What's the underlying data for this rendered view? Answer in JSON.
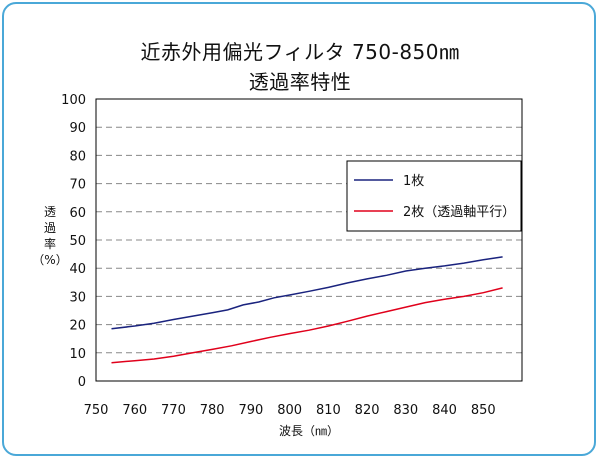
{
  "chart_data": {
    "type": "line",
    "title": "近赤外用偏光フィルタ 750-850㎚",
    "subtitle": "透過率特性",
    "xlabel": "波長（㎚）",
    "ylabel_lines": [
      "透",
      "過",
      "率",
      "（%）"
    ],
    "xlim": [
      750,
      860
    ],
    "ylim": [
      0,
      100
    ],
    "x_ticks": [
      750,
      760,
      770,
      780,
      790,
      800,
      810,
      820,
      830,
      840,
      850
    ],
    "y_ticks": [
      0,
      10,
      20,
      30,
      40,
      50,
      60,
      70,
      80,
      90,
      100
    ],
    "grid": "horizontal dashed",
    "legend_position": "right-center",
    "series": [
      {
        "name": "1枚",
        "color": "#1a237e",
        "x": [
          754,
          760,
          765,
          770,
          775,
          780,
          784,
          788,
          792,
          796,
          800,
          805,
          810,
          815,
          820,
          825,
          830,
          835,
          840,
          845,
          850,
          855
        ],
        "y": [
          18.5,
          19.5,
          20.5,
          21.8,
          23,
          24.2,
          25.2,
          27,
          28,
          29.5,
          30.5,
          31.8,
          33.2,
          34.8,
          36.2,
          37.5,
          39,
          40,
          40.8,
          41.8,
          43,
          44
        ]
      },
      {
        "name": "2枚（透過軸平行）",
        "color": "#e0001b",
        "x": [
          754,
          760,
          765,
          770,
          775,
          780,
          785,
          790,
          795,
          800,
          805,
          810,
          815,
          820,
          825,
          830,
          835,
          840,
          845,
          850,
          855
        ],
        "y": [
          6.5,
          7.2,
          7.8,
          8.8,
          10,
          11.2,
          12.5,
          14,
          15.5,
          16.8,
          18,
          19.5,
          21.2,
          23,
          24.6,
          26.2,
          27.8,
          29,
          30,
          31.3,
          33
        ]
      }
    ]
  }
}
